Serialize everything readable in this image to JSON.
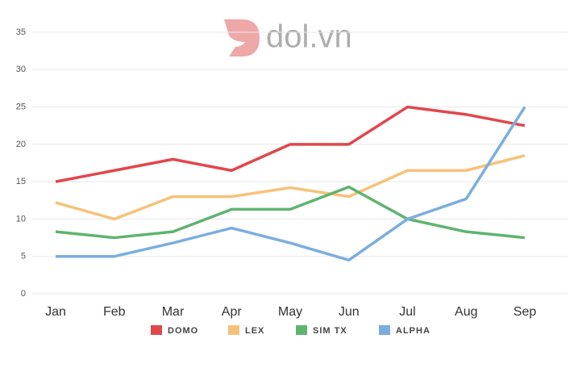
{
  "chart_data": {
    "type": "line",
    "watermark": "dol.vn",
    "categories": [
      "Jan",
      "Feb",
      "Mar",
      "Apr",
      "May",
      "Jun",
      "Jul",
      "Aug",
      "Sep"
    ],
    "series": [
      {
        "name": "DOMO",
        "color": "#e0474c",
        "values": [
          15,
          16.5,
          18,
          16.5,
          20,
          20,
          25,
          24,
          22.5
        ]
      },
      {
        "name": "LEX",
        "color": "#f6c27a",
        "values": [
          12.2,
          10,
          13,
          13,
          14.2,
          13,
          16.5,
          16.5,
          18.5
        ]
      },
      {
        "name": "SIM TX",
        "color": "#5fb46f",
        "values": [
          8.3,
          7.5,
          8.3,
          11.3,
          11.3,
          14.3,
          10,
          8.3,
          7.5
        ]
      },
      {
        "name": "ALPHA",
        "color": "#7aaee0",
        "values": [
          5,
          5,
          6.8,
          8.8,
          6.8,
          4.5,
          10,
          12.7,
          25
        ]
      }
    ],
    "ylim": [
      0,
      35
    ],
    "yticks": [
      0,
      5,
      10,
      15,
      20,
      25,
      30,
      35
    ],
    "grid": true
  }
}
